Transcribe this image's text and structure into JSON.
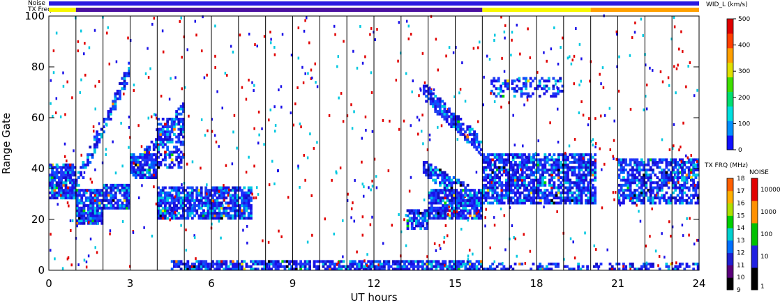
{
  "chart_data": {
    "type": "heatmap",
    "xlabel": "UT hours",
    "ylabel": "Range Gate",
    "xlim": [
      0,
      24
    ],
    "ylim": [
      0,
      100
    ],
    "x_ticks": [
      0,
      3,
      6,
      9,
      12,
      15,
      18,
      21,
      24
    ],
    "y_ticks": [
      0,
      20,
      40,
      60,
      80,
      100
    ],
    "vertical_scan_lines_ut": [
      1,
      2,
      3,
      4,
      5,
      6,
      7,
      8,
      9,
      10,
      11,
      12,
      13,
      14,
      15,
      16,
      17,
      18,
      19,
      20,
      21,
      22,
      23
    ],
    "top_bars": {
      "noise_label": "Noise",
      "txfreq_label": "TX Freq",
      "noise_color": "#2a18e0",
      "txfreq_segments": [
        {
          "start": 0,
          "end": 1,
          "color": "#f7f700"
        },
        {
          "start": 1,
          "end": 16,
          "color": "#4a10a0"
        },
        {
          "start": 16,
          "end": 20,
          "color": "#f7f700"
        },
        {
          "start": 20,
          "end": 24,
          "color": "#ffa000"
        }
      ]
    },
    "width_scale": {
      "label": "WID_L (km/s)",
      "ticks": [
        0,
        100,
        200,
        300,
        400,
        500
      ],
      "colors": [
        "#1010ff",
        "#0090ff",
        "#00e0e0",
        "#00e070",
        "#40e000",
        "#e0e000",
        "#ffa000",
        "#ff4000",
        "#e00000"
      ]
    },
    "freq_scale": {
      "label": "TX FRQ (MHz)",
      "ticks": [
        9,
        10,
        11,
        12,
        13,
        14,
        15,
        16,
        17,
        18
      ],
      "colors": [
        "#000000",
        "#5a007a",
        "#2020d0",
        "#0070ff",
        "#00d0d0",
        "#00d000",
        "#b0e000",
        "#ffb000",
        "#ff6000",
        "#e00000"
      ]
    },
    "noise_scale": {
      "label": "NOISE",
      "ticks": [
        "1",
        "10",
        "100",
        "1000",
        "10000"
      ],
      "colors": [
        "#000000",
        "#2020e0",
        "#00c000",
        "#ff9000",
        "#e00000"
      ]
    },
    "scatter_regions": [
      {
        "x": [
          0,
          1
        ],
        "y": [
          28,
          42
        ],
        "density": 0.8
      },
      {
        "x": [
          1,
          2
        ],
        "y": [
          18,
          32
        ],
        "density": 0.85
      },
      {
        "x": [
          2,
          3
        ],
        "y": [
          24,
          34
        ],
        "density": 0.8
      },
      {
        "x": [
          3,
          4
        ],
        "y": [
          36,
          46
        ],
        "density": 0.8
      },
      {
        "x": [
          4,
          5
        ],
        "y": [
          40,
          60
        ],
        "density": 0.5
      },
      {
        "x": [
          4,
          7.5
        ],
        "y": [
          20,
          33
        ],
        "density": 0.85
      },
      {
        "x": [
          13.2,
          14
        ],
        "y": [
          16,
          24
        ],
        "density": 0.8
      },
      {
        "x": [
          14,
          16
        ],
        "y": [
          20,
          32
        ],
        "density": 0.85
      },
      {
        "x": [
          16,
          20.2
        ],
        "y": [
          26,
          46
        ],
        "density": 0.75
      },
      {
        "x": [
          21,
          24
        ],
        "y": [
          26,
          44
        ],
        "density": 0.7
      },
      {
        "x": [
          16.3,
          19
        ],
        "y": [
          68,
          76
        ],
        "density": 0.35
      },
      {
        "x": [
          4.5,
          16
        ],
        "y": [
          0,
          4
        ],
        "density": 0.75
      },
      {
        "x": [
          16,
          24
        ],
        "y": [
          0,
          3
        ],
        "density": 0.4
      },
      {
        "x": [
          0,
          24
        ],
        "y": [
          0,
          100
        ],
        "density": 0.015
      }
    ],
    "arcs": [
      {
        "x": [
          0.8,
          3
        ],
        "y": [
          30,
          80
        ],
        "density": 0.6
      },
      {
        "x": [
          3,
          5
        ],
        "y": [
          38,
          64
        ],
        "density": 0.7
      },
      {
        "x": [
          13.8,
          16
        ],
        "y": [
          70,
          48
        ],
        "density": 0.7
      },
      {
        "x": [
          13.8,
          15.5
        ],
        "y": [
          40,
          30
        ],
        "density": 0.6
      }
    ]
  }
}
